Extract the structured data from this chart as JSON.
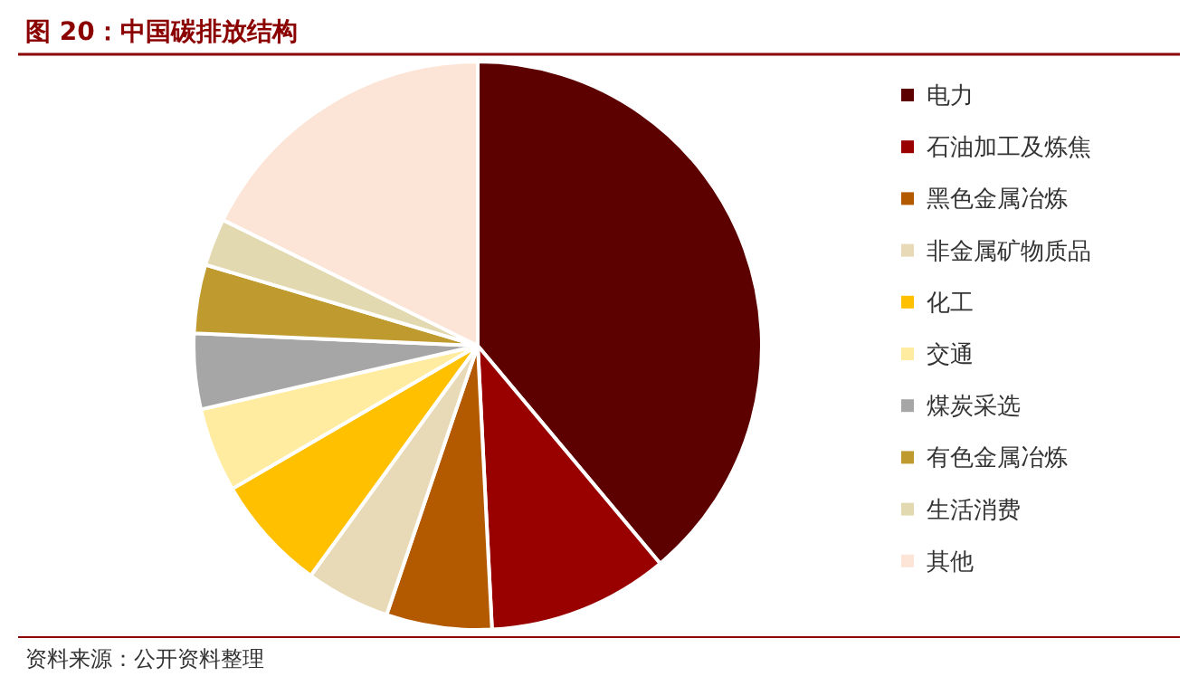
{
  "chart_data": {
    "type": "pie",
    "title": "图 20：中国碳排放结构",
    "categories": [
      "电力",
      "石油加工及炼焦",
      "黑色金属冶炼",
      "非金属矿物质品",
      "化工",
      "交通",
      "煤炭采选",
      "有色金属冶炼",
      "生活消费",
      "其他"
    ],
    "values": [
      38.9,
      10.3,
      6.0,
      4.8,
      6.6,
      4.8,
      4.3,
      3.9,
      2.7,
      17.7
    ],
    "colors": [
      "#5c0000",
      "#990000",
      "#b35900",
      "#e8dab6",
      "#ffc000",
      "#ffeca0",
      "#a6a6a6",
      "#bf9a2e",
      "#e3d9b0",
      "#fce4d6"
    ],
    "legend": "right",
    "annotations": [
      "资料来源：公开资料整理"
    ]
  }
}
